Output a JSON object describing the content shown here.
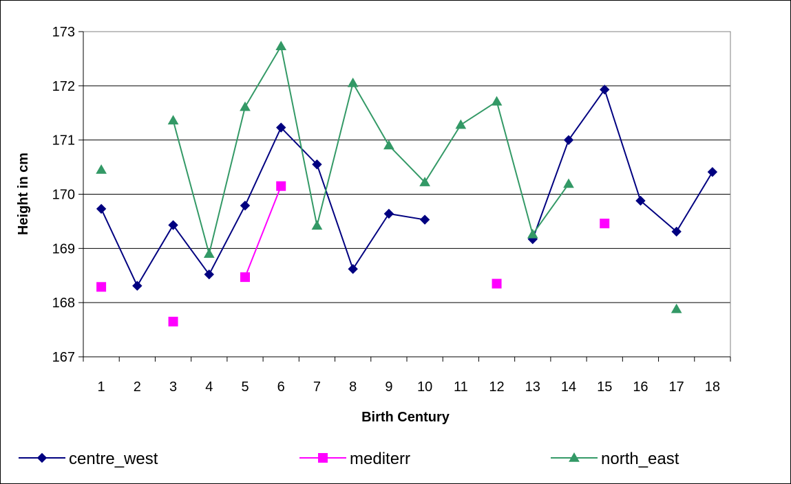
{
  "chart_data": {
    "type": "line",
    "title": "",
    "xlabel": "Birth Century",
    "ylabel": "Height in cm",
    "ylim": [
      167,
      173
    ],
    "yticks": [
      167,
      168,
      169,
      170,
      171,
      172,
      173
    ],
    "grid": "horizontal",
    "legend_position": "bottom",
    "categories": [
      "1",
      "2",
      "3",
      "4",
      "5",
      "6",
      "7",
      "8",
      "9",
      "10",
      "11",
      "12",
      "13",
      "14",
      "15",
      "16",
      "17",
      "18"
    ],
    "series": [
      {
        "name": "centre_west",
        "color": "#000080",
        "marker": "diamond",
        "values": [
          169.73,
          168.31,
          169.43,
          168.52,
          169.79,
          171.23,
          170.55,
          168.62,
          169.64,
          169.53,
          null,
          null,
          169.17,
          171.0,
          171.93,
          169.88,
          169.31,
          170.41
        ]
      },
      {
        "name": "mediterr",
        "color": "#FF00FF",
        "marker": "square",
        "values": [
          168.29,
          null,
          167.65,
          null,
          168.47,
          170.15,
          null,
          null,
          null,
          null,
          null,
          168.35,
          null,
          null,
          169.46,
          null,
          null,
          null
        ]
      },
      {
        "name": "north_east",
        "color": "#339966",
        "marker": "triangle",
        "values": [
          170.45,
          null,
          171.36,
          168.9,
          171.61,
          172.73,
          169.42,
          172.05,
          170.9,
          170.22,
          171.28,
          171.71,
          169.26,
          170.19,
          null,
          null,
          167.88,
          null
        ]
      }
    ]
  }
}
